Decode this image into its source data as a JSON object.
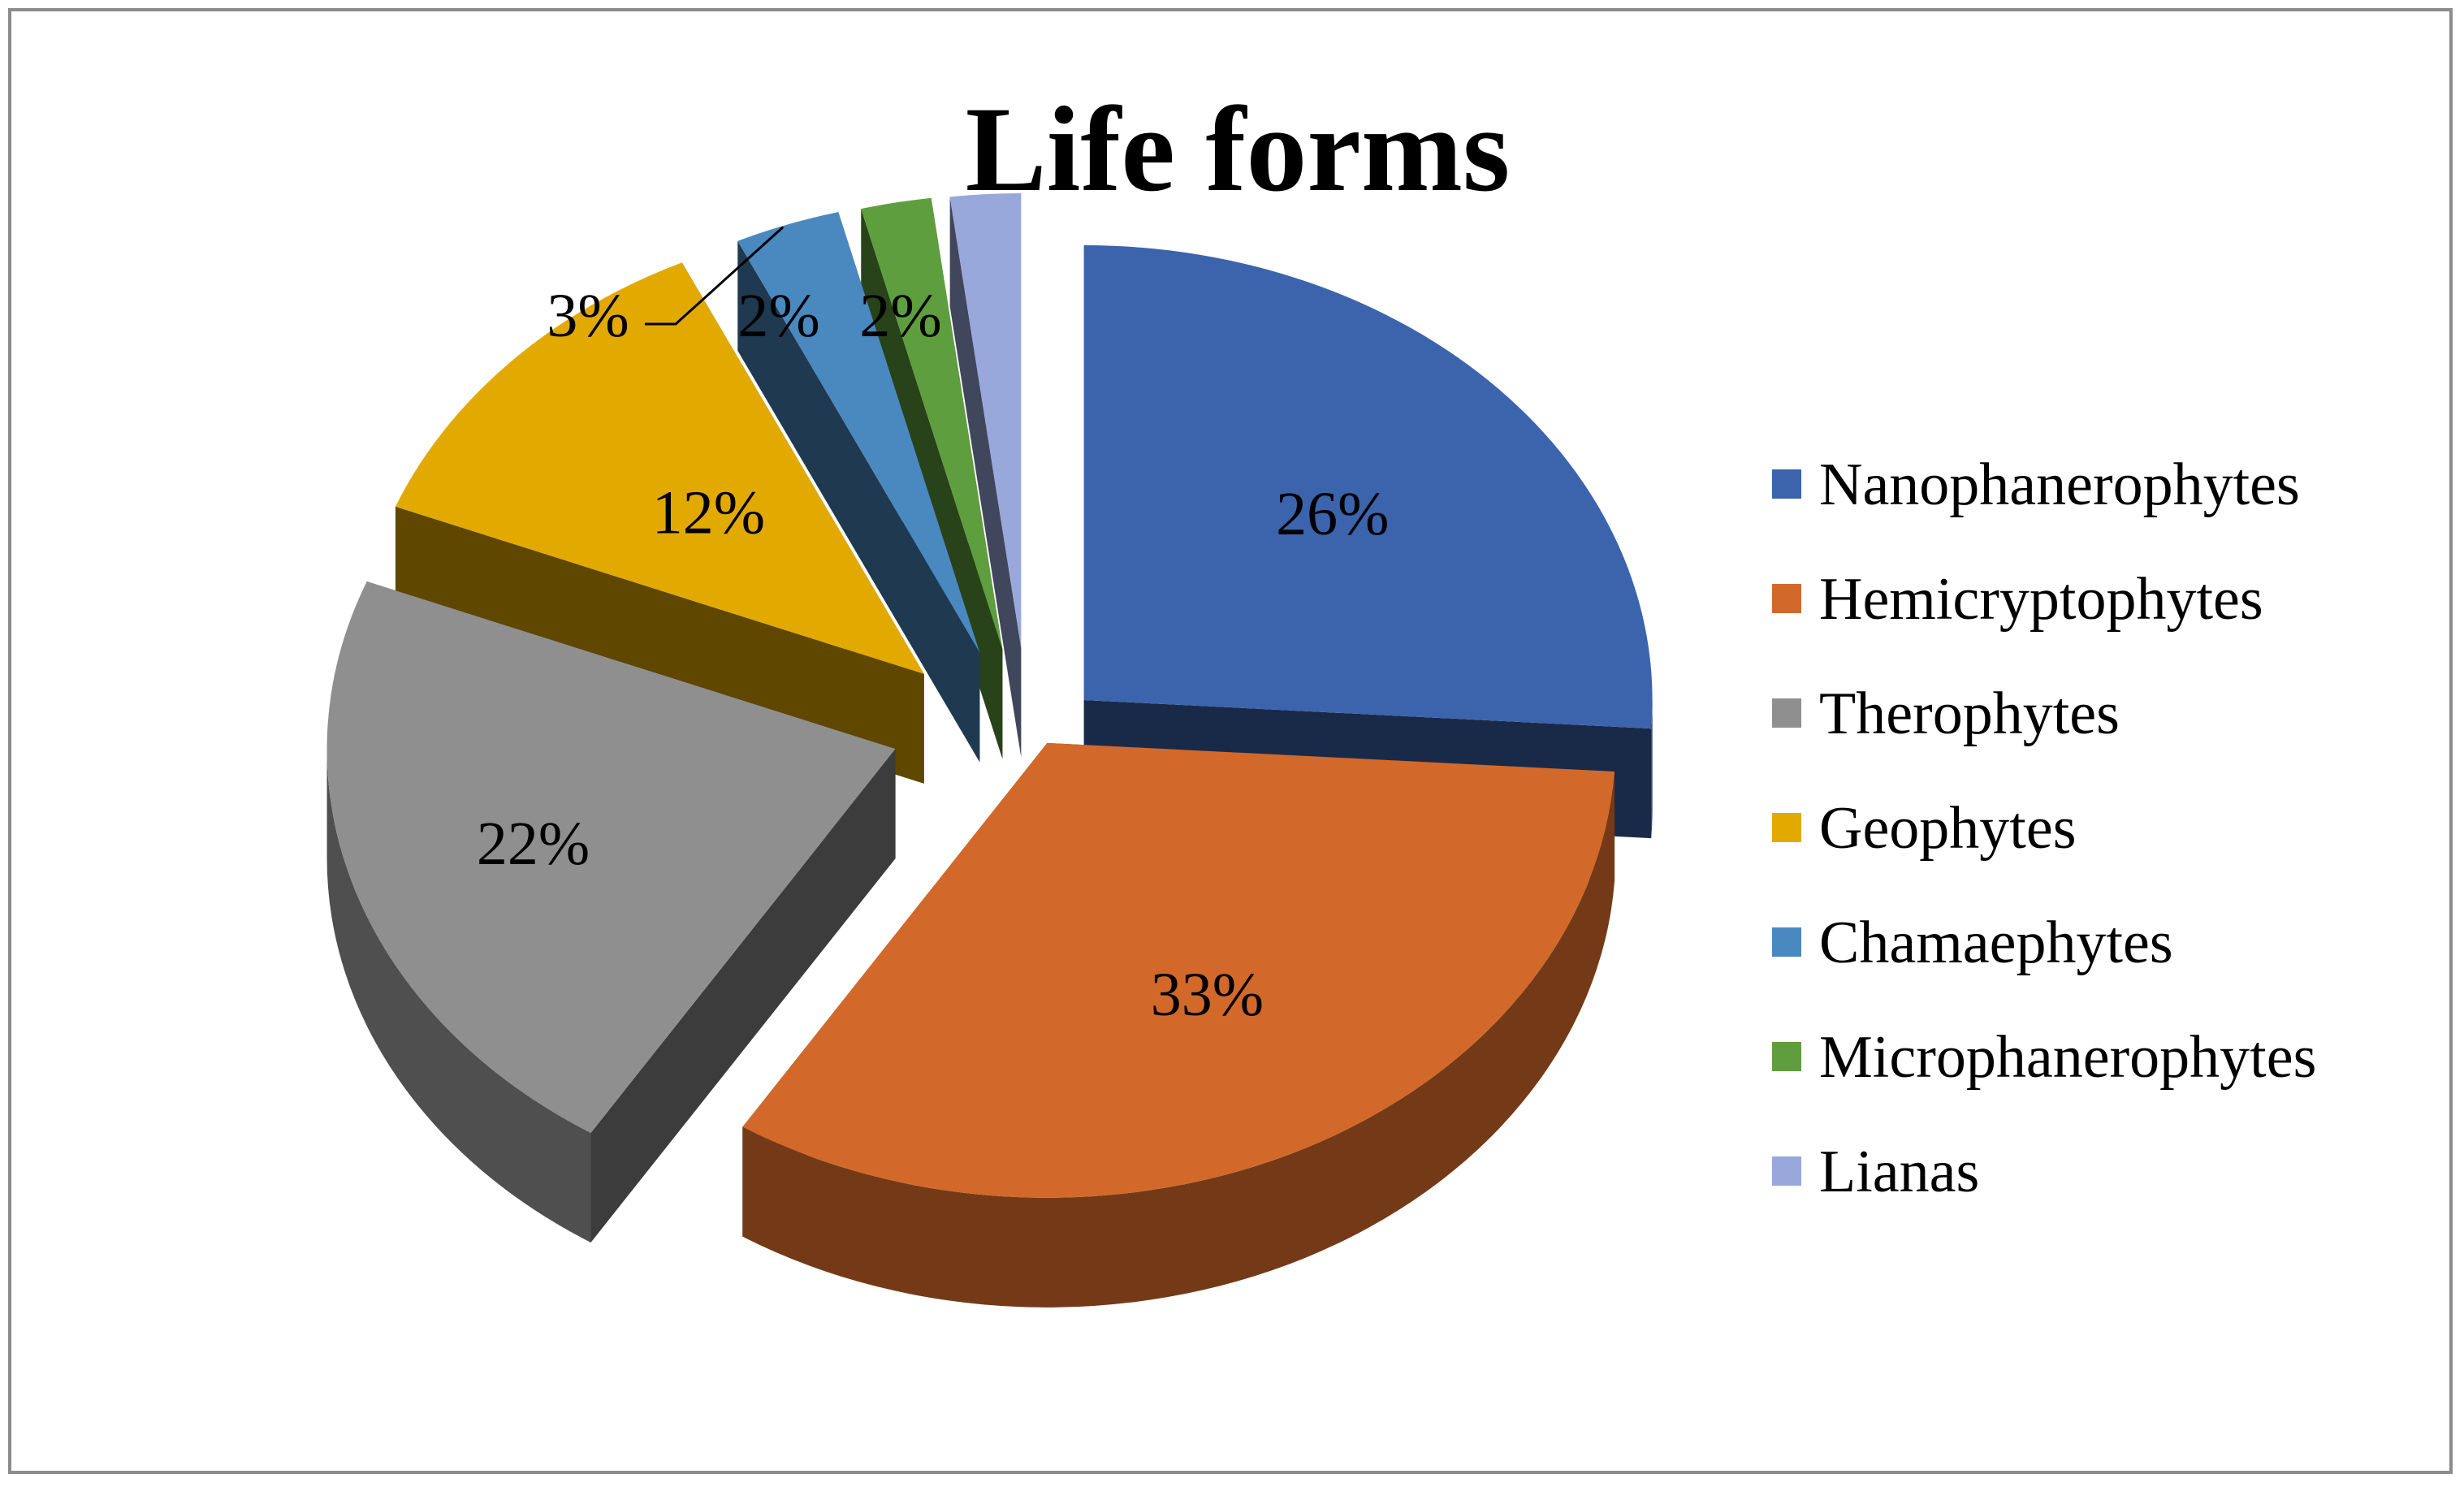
{
  "chart_data": {
    "type": "pie",
    "title": "Life forms",
    "categories": [
      "Nanophanerophytes",
      "Hemicryptophytes",
      "Therophytes",
      "Geophytes",
      "Chamaephytes",
      "Microphanerophytes",
      "Lianas"
    ],
    "values": [
      26,
      33,
      22,
      12,
      3,
      2,
      2
    ],
    "labels": [
      "26%",
      "33%",
      "22%",
      "12%",
      "3%",
      "2%",
      "2%"
    ],
    "colors": [
      "#3b64ad",
      "#d2692a",
      "#8f8f8f",
      "#e2aa00",
      "#4a88c0",
      "#5f9e3e",
      "#99a8db"
    ],
    "legend_position": "right",
    "style": "3d-exploded"
  }
}
